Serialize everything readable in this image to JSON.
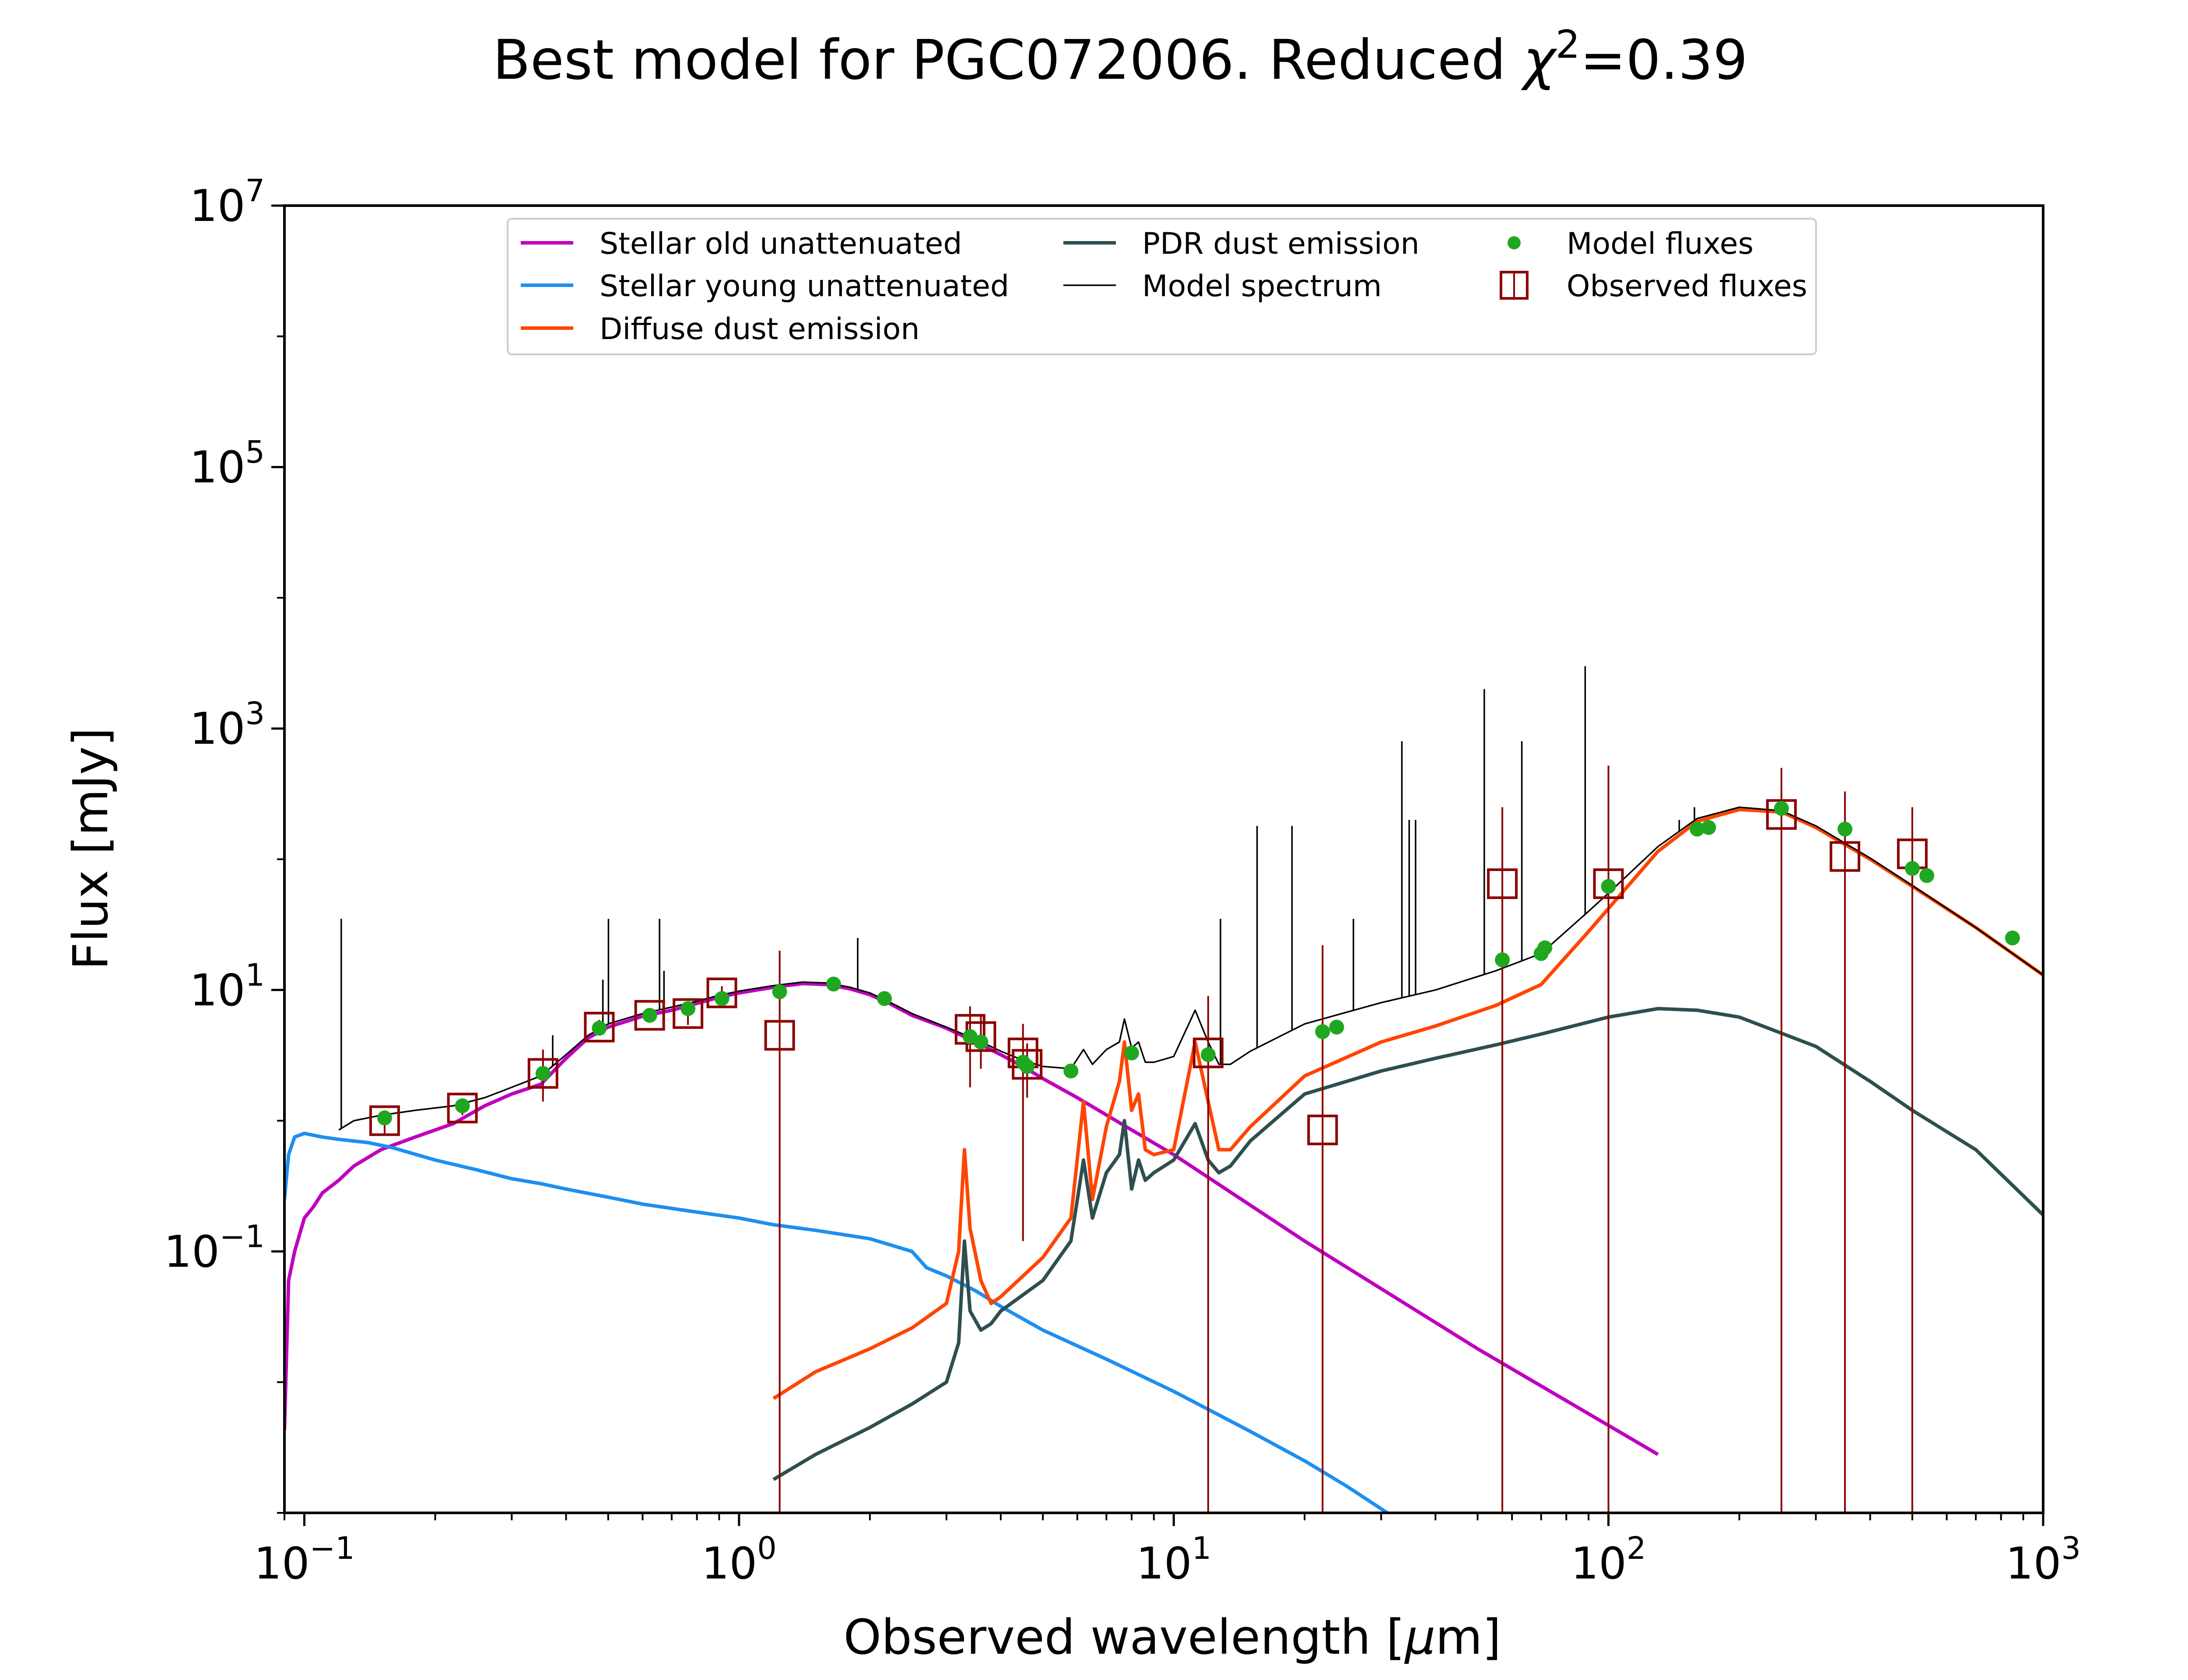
{
  "chart_data": {
    "type": "line",
    "title": "Best model for PGC072006. Reduced χ²=0.39",
    "title_main": "Best model for PGC072006. Reduced ",
    "title_chi": "χ",
    "title_chi_exp": "2",
    "title_value": "=0.39",
    "xlabel": "Observed wavelength [μm]",
    "xlabel_main": "Observed wavelength [",
    "xlabel_mu": "μ",
    "xlabel_end": "m]",
    "ylabel": "Flux [mJy]",
    "xscale": "log",
    "yscale": "log",
    "xlim": [
      0.09,
      1000
    ],
    "ylim": [
      0.001,
      10000000
    ],
    "grid": false,
    "legend_position": "top-center",
    "x_ticks": [
      {
        "value": 0.1,
        "base": "10",
        "exp": "−1"
      },
      {
        "value": 1,
        "base": "10",
        "exp": "0"
      },
      {
        "value": 10,
        "base": "10",
        "exp": "1"
      },
      {
        "value": 100,
        "base": "10",
        "exp": "2"
      },
      {
        "value": 1000,
        "base": "10",
        "exp": "3"
      }
    ],
    "y_ticks": [
      {
        "value": 0.1,
        "base": "10",
        "exp": "−1"
      },
      {
        "value": 10,
        "base": "10",
        "exp": "1"
      },
      {
        "value": 1000,
        "base": "10",
        "exp": "3"
      },
      {
        "value": 100000,
        "base": "10",
        "exp": "5"
      },
      {
        "value": 10000000,
        "base": "10",
        "exp": "7"
      }
    ],
    "series": [
      {
        "name": "Stellar old unattenuated",
        "color": "#bf00bf",
        "marker": "line",
        "x": [
          0.09,
          0.092,
          0.095,
          0.1,
          0.105,
          0.11,
          0.12,
          0.13,
          0.15,
          0.18,
          0.22,
          0.26,
          0.3,
          0.35,
          0.4,
          0.45,
          0.5,
          0.6,
          0.7,
          0.8,
          0.9,
          1.0,
          1.2,
          1.4,
          1.6,
          1.8,
          2.0,
          2.2,
          2.5,
          3.0,
          3.5,
          4.0,
          4.5,
          5.0,
          6.0,
          8.0,
          10,
          20,
          50,
          130
        ],
        "y": [
          0.0043,
          0.06,
          0.1,
          0.18,
          0.22,
          0.28,
          0.35,
          0.45,
          0.6,
          0.75,
          0.95,
          1.3,
          1.6,
          1.9,
          3.0,
          4.3,
          5.2,
          6.3,
          7.0,
          7.9,
          8.8,
          9.5,
          10.5,
          11.2,
          11.0,
          10.2,
          9.2,
          8.0,
          6.4,
          5.1,
          4.0,
          3.2,
          2.6,
          2.1,
          1.5,
          0.85,
          0.55,
          0.12,
          0.018,
          0.0028
        ]
      },
      {
        "name": "Stellar young unattenuated",
        "color": "#1e8ff0",
        "marker": "line",
        "x": [
          0.09,
          0.092,
          0.095,
          0.1,
          0.11,
          0.12,
          0.14,
          0.16,
          0.2,
          0.25,
          0.3,
          0.35,
          0.4,
          0.5,
          0.6,
          0.8,
          1.0,
          1.2,
          1.5,
          2.0,
          2.5,
          2.7,
          3.0,
          3.5,
          4.0,
          5.0,
          7.0,
          10,
          15,
          20,
          25,
          31
        ],
        "y": [
          0.25,
          0.55,
          0.75,
          0.8,
          0.75,
          0.72,
          0.68,
          0.62,
          0.5,
          0.42,
          0.36,
          0.33,
          0.3,
          0.26,
          0.23,
          0.2,
          0.18,
          0.16,
          0.145,
          0.125,
          0.1,
          0.075,
          0.065,
          0.05,
          0.038,
          0.025,
          0.015,
          0.0085,
          0.0042,
          0.0025,
          0.0016,
          0.001
        ]
      },
      {
        "name": "Diffuse dust emission",
        "color": "#ff4500",
        "marker": "line",
        "x": [
          1.2,
          1.5,
          2.0,
          2.5,
          3.0,
          3.2,
          3.3,
          3.4,
          3.6,
          3.8,
          4.0,
          5.0,
          5.8,
          6.2,
          6.5,
          7.0,
          7.5,
          7.7,
          8.0,
          8.3,
          8.6,
          9.0,
          10,
          11.2,
          12,
          12.7,
          13.5,
          15,
          20,
          30,
          40,
          55,
          70,
          90,
          100,
          130,
          160,
          200,
          250,
          300,
          400,
          500,
          700,
          1000
        ],
        "y": [
          0.0075,
          0.012,
          0.018,
          0.026,
          0.04,
          0.1,
          0.6,
          0.15,
          0.06,
          0.04,
          0.045,
          0.09,
          0.18,
          1.4,
          0.25,
          0.9,
          2.0,
          4.0,
          1.2,
          1.6,
          0.6,
          0.55,
          0.6,
          4.0,
          1.4,
          0.6,
          0.6,
          0.9,
          2.2,
          4.0,
          5.3,
          7.6,
          11,
          28,
          42,
          115,
          195,
          240,
          230,
          175,
          100,
          62,
          30,
          13
        ]
      },
      {
        "name": "PDR dust emission",
        "color": "#2f4f4f",
        "marker": "line",
        "x": [
          1.2,
          1.5,
          2.0,
          2.5,
          3.0,
          3.2,
          3.3,
          3.4,
          3.6,
          3.8,
          4.0,
          5.0,
          5.8,
          6.2,
          6.5,
          7.0,
          7.5,
          7.7,
          8.0,
          8.3,
          8.6,
          9.0,
          10,
          11.2,
          12,
          12.7,
          13.5,
          15,
          20,
          30,
          40,
          55,
          70,
          100,
          130,
          160,
          200,
          300,
          400,
          500,
          700,
          1000
        ],
        "y": [
          0.0018,
          0.0028,
          0.0045,
          0.0068,
          0.01,
          0.02,
          0.12,
          0.035,
          0.025,
          0.028,
          0.035,
          0.06,
          0.12,
          0.5,
          0.18,
          0.4,
          0.55,
          1.0,
          0.3,
          0.5,
          0.35,
          0.4,
          0.5,
          0.95,
          0.5,
          0.4,
          0.45,
          0.7,
          1.6,
          2.4,
          3.0,
          3.8,
          4.6,
          6.2,
          7.2,
          7.0,
          6.2,
          3.7,
          2.0,
          1.2,
          0.6,
          0.19
        ]
      },
      {
        "name": "Model spectrum",
        "color": "#000000",
        "marker": "line",
        "x": [
          0.12,
          0.13,
          0.15,
          0.18,
          0.22,
          0.26,
          0.3,
          0.35,
          0.4,
          0.45,
          0.5,
          0.6,
          0.7,
          0.8,
          0.9,
          1.0,
          1.2,
          1.4,
          1.6,
          1.8,
          2.0,
          2.2,
          2.5,
          3.0,
          3.5,
          4.0,
          4.5,
          5.0,
          5.8,
          6.2,
          6.5,
          7.0,
          7.5,
          7.7,
          8.0,
          8.3,
          8.6,
          9.0,
          10,
          11.2,
          12,
          12.7,
          13.5,
          15,
          20,
          30,
          40,
          55,
          70,
          90,
          100,
          130,
          160,
          200,
          250,
          300,
          400,
          500,
          700,
          1000
        ],
        "y": [
          0.85,
          1.0,
          1.1,
          1.2,
          1.3,
          1.5,
          1.8,
          2.2,
          3.2,
          4.5,
          5.5,
          6.6,
          7.4,
          8.2,
          9.1,
          9.8,
          10.8,
          11.5,
          11.3,
          10.5,
          9.5,
          8.2,
          6.6,
          5.2,
          4.2,
          3.4,
          2.9,
          2.6,
          2.5,
          3.5,
          2.7,
          3.5,
          4.0,
          6.0,
          3.6,
          4.0,
          2.8,
          2.8,
          3.1,
          7.0,
          4.0,
          2.7,
          2.7,
          3.4,
          5.5,
          8.0,
          10,
          14,
          19,
          40,
          55,
          125,
          205,
          250,
          235,
          180,
          102,
          63,
          30,
          13
        ]
      }
    ],
    "emission_lines": [
      {
        "x": 0.1216,
        "y": 35
      },
      {
        "x": 0.3727,
        "y": 4.5
      },
      {
        "x": 0.4861,
        "y": 12
      },
      {
        "x": 0.5007,
        "y": 35
      },
      {
        "x": 0.6563,
        "y": 35
      },
      {
        "x": 0.672,
        "y": 14
      },
      {
        "x": 1.875,
        "y": 25
      },
      {
        "x": 12.81,
        "y": 35
      },
      {
        "x": 15.55,
        "y": 180
      },
      {
        "x": 18.71,
        "y": 180
      },
      {
        "x": 25.9,
        "y": 35
      },
      {
        "x": 33.48,
        "y": 800
      },
      {
        "x": 34.8,
        "y": 200
      },
      {
        "x": 36.0,
        "y": 200
      },
      {
        "x": 51.8,
        "y": 2000
      },
      {
        "x": 63.2,
        "y": 800
      },
      {
        "x": 88.4,
        "y": 3000
      },
      {
        "x": 145.5,
        "y": 200
      },
      {
        "x": 157.7,
        "y": 250
      }
    ],
    "model_fluxes": {
      "name": "Model fluxes",
      "color": "#1fa81f",
      "x": [
        0.153,
        0.231,
        0.354,
        0.477,
        0.623,
        0.763,
        0.913,
        1.24,
        1.65,
        2.16,
        3.4,
        3.6,
        4.5,
        4.6,
        5.8,
        8.0,
        12,
        22,
        23.7,
        57,
        70,
        71.4,
        100,
        160,
        170,
        250,
        350,
        500,
        540,
        850
      ],
      "y": [
        1.05,
        1.3,
        2.3,
        5.1,
        6.4,
        7.2,
        8.6,
        9.7,
        11.1,
        8.6,
        4.4,
        4.0,
        2.8,
        2.6,
        2.4,
        3.3,
        3.2,
        4.8,
        5.2,
        17,
        19,
        21,
        62,
        170,
        175,
        245,
        170,
        85,
        75,
        25
      ]
    },
    "observed_fluxes": {
      "name": "Observed fluxes",
      "color": "#8b0000",
      "x": [
        0.153,
        0.231,
        0.354,
        0.477,
        0.623,
        0.763,
        0.913,
        1.24,
        3.4,
        3.6,
        4.5,
        4.6,
        12,
        22,
        57,
        100,
        250,
        350,
        500
      ],
      "y": [
        1.0,
        1.25,
        2.3,
        5.2,
        6.4,
        6.6,
        9.5,
        4.5,
        5.0,
        4.4,
        3.3,
        2.7,
        3.3,
        0.85,
        65,
        65,
        220,
        105,
        110
      ],
      "err_low": [
        0.8,
        1.1,
        1.4,
        4.6,
        6.0,
        5.4,
        8.2,
        0.001,
        1.8,
        2.5,
        0.12,
        1.5,
        0.001,
        0.001,
        0.001,
        0.001,
        0.001,
        0.001,
        0.001
      ],
      "err_high": [
        1.2,
        1.45,
        3.5,
        5.9,
        6.9,
        7.8,
        10.7,
        20,
        7.5,
        6.5,
        5.5,
        3.9,
        9,
        22,
        250,
        520,
        500,
        330,
        250
      ]
    }
  },
  "legend": {
    "items": [
      {
        "label": "Stellar old unattenuated",
        "color": "#bf00bf",
        "kind": "line"
      },
      {
        "label": "Stellar young unattenuated",
        "color": "#1e8ff0",
        "kind": "line"
      },
      {
        "label": "Diffuse dust emission",
        "color": "#ff4500",
        "kind": "line"
      },
      {
        "label": "PDR dust emission",
        "color": "#2f4f4f",
        "kind": "line"
      },
      {
        "label": "Model spectrum",
        "color": "#000000",
        "kind": "thin-line"
      },
      {
        "label": "Model fluxes",
        "color": "#1fa81f",
        "kind": "dot"
      },
      {
        "label": "Observed fluxes",
        "color": "#8b0000",
        "kind": "square"
      }
    ]
  }
}
